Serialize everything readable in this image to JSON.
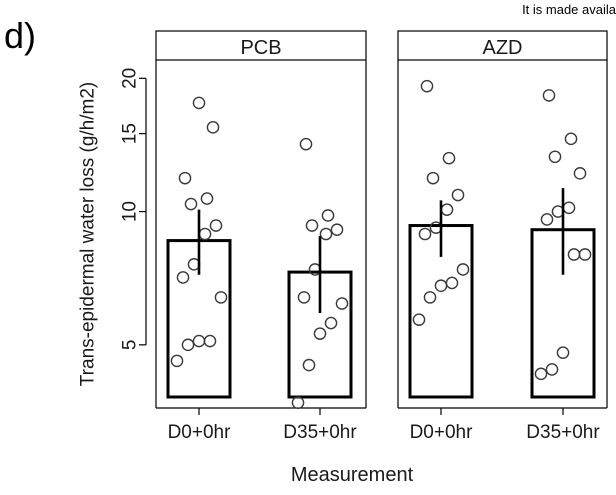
{
  "panel_label": "d)",
  "header_note": "It is made availa",
  "chart_data": {
    "type": "bar",
    "title": "",
    "xlabel": "Measurement",
    "ylabel": "Trans-epidermal water loss (g/h/m2)",
    "y_scale": "log",
    "ylim": [
      3.6,
      22
    ],
    "yticks": [
      5,
      10,
      15,
      20
    ],
    "grid": false,
    "facets": [
      {
        "label": "PCB",
        "categories": [
          "D0+0hr",
          "D35+0hr"
        ],
        "bar_values": [
          8.6,
          7.3
        ],
        "error_bars": [
          [
            7.2,
            10.1
          ],
          [
            5.9,
            8.8
          ]
        ],
        "points": [
          [
            4.6,
            5.0,
            5.1,
            5.1,
            6.4,
            7.1,
            7.6,
            8.9,
            9.3,
            10.4,
            10.7,
            11.9,
            15.5,
            17.6
          ],
          [
            3.7,
            4.5,
            5.3,
            5.6,
            6.2,
            6.4,
            7.4,
            8.9,
            9.1,
            9.3,
            9.8,
            14.2
          ]
        ]
      },
      {
        "label": "AZD",
        "categories": [
          "D0+0hr",
          "D35+0hr"
        ],
        "bar_values": [
          9.3,
          9.1
        ],
        "error_bars": [
          [
            7.9,
            10.6
          ],
          [
            7.2,
            11.3
          ]
        ],
        "points": [
          [
            5.7,
            6.4,
            6.8,
            6.9,
            7.4,
            8.9,
            9.2,
            10.1,
            10.9,
            11.9,
            13.2,
            19.2
          ],
          [
            4.3,
            4.4,
            4.8,
            8.0,
            8.0,
            9.6,
            10.0,
            10.2,
            12.2,
            13.3,
            14.6,
            18.3
          ]
        ]
      }
    ]
  }
}
